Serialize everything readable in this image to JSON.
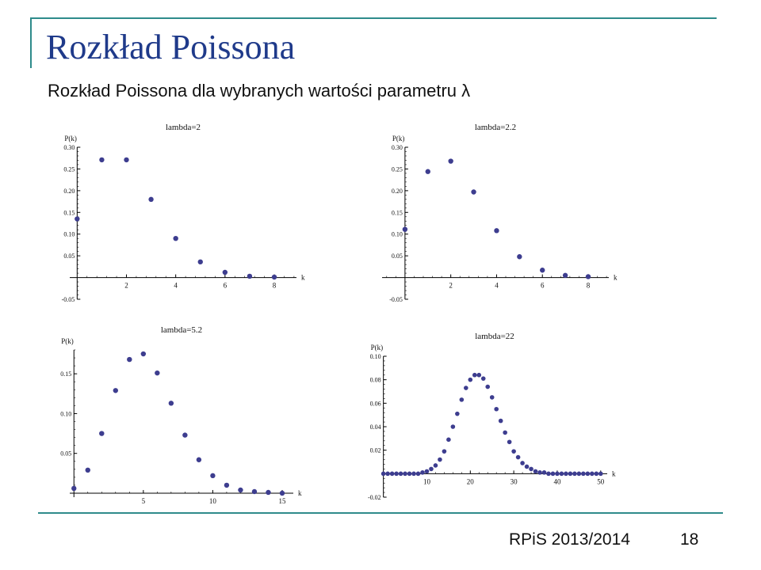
{
  "slide": {
    "title": "Rozkład Poissona",
    "subtitle": "Rozkład Poissona dla wybranych wartości parametru λ",
    "footer_course": "RPiS 2013/2014",
    "footer_page": "18",
    "accent_color": "#2e8b8b",
    "title_color": "#1f3a8a",
    "point_color": "#3d3d8f"
  },
  "chart_data": [
    {
      "type": "scatter",
      "title": "lambda=2",
      "xlabel": "k",
      "ylabel": "P(k)",
      "xlim": [
        -0.3,
        8.9
      ],
      "ylim": [
        -0.05,
        0.3
      ],
      "xticks": [
        2,
        4,
        6,
        8
      ],
      "xtick_labels": [
        "2",
        "4",
        "6",
        "8"
      ],
      "yticks": [
        -0.05,
        0.05,
        0.1,
        0.15,
        0.2,
        0.25,
        0.3
      ],
      "ytick_labels": [
        "-0.05",
        "0.05",
        "0.10",
        "0.15",
        "0.20",
        "0.25",
        "0.30"
      ],
      "x": [
        0,
        1,
        2,
        3,
        4,
        5,
        6,
        7,
        8
      ],
      "y": [
        0.135,
        0.271,
        0.271,
        0.18,
        0.09,
        0.036,
        0.012,
        0.003,
        0.001
      ]
    },
    {
      "type": "scatter",
      "title": "lambda=2.2",
      "xlabel": "k",
      "ylabel": "P(k)",
      "xlim": [
        -1.0,
        8.9
      ],
      "ylim": [
        -0.05,
        0.3
      ],
      "xticks": [
        2,
        4,
        6,
        8
      ],
      "xtick_labels": [
        "2",
        "4",
        "6",
        "8"
      ],
      "yticks": [
        -0.05,
        0.05,
        0.1,
        0.15,
        0.2,
        0.25,
        0.3
      ],
      "ytick_labels": [
        "-0.05",
        "0.05",
        "0.10",
        "0.15",
        "0.20",
        "0.25",
        "0.30"
      ],
      "x": [
        0,
        1,
        2,
        3,
        4,
        5,
        6,
        7,
        8
      ],
      "y": [
        0.111,
        0.244,
        0.268,
        0.197,
        0.108,
        0.048,
        0.017,
        0.005,
        0.002
      ]
    },
    {
      "type": "scatter",
      "title": "lambda=5.2",
      "xlabel": "k",
      "ylabel": "P(k)",
      "xlim": [
        -0.3,
        15.8
      ],
      "ylim": [
        -0.005,
        0.18
      ],
      "xticks": [
        5,
        10,
        15
      ],
      "xtick_labels": [
        "5",
        "10",
        "15"
      ],
      "yticks": [
        0.05,
        0.1,
        0.15
      ],
      "ytick_labels": [
        "0.05",
        "0.10",
        "0.15"
      ],
      "x": [
        0,
        1,
        2,
        3,
        4,
        5,
        6,
        7,
        8,
        9,
        10,
        11,
        12,
        13,
        14,
        15
      ],
      "y": [
        0.006,
        0.029,
        0.075,
        0.129,
        0.168,
        0.175,
        0.151,
        0.113,
        0.073,
        0.042,
        0.022,
        0.01,
        0.004,
        0.002,
        0.001,
        0.0
      ]
    },
    {
      "type": "scatter",
      "title": "lambda=22",
      "xlabel": "k",
      "ylabel": "P(k)",
      "xlim": [
        -0.3,
        51.5
      ],
      "ylim": [
        -0.02,
        0.1
      ],
      "xticks": [
        10,
        20,
        30,
        40,
        50
      ],
      "xtick_labels": [
        "10",
        "20",
        "30",
        "40",
        "50"
      ],
      "yticks": [
        -0.02,
        0.02,
        0.04,
        0.06,
        0.08,
        0.1
      ],
      "ytick_labels": [
        "-0.02",
        "0.02",
        "0.04",
        "0.06",
        "0.08",
        "0.10"
      ],
      "x": [
        0,
        1,
        2,
        3,
        4,
        5,
        6,
        7,
        8,
        9,
        10,
        11,
        12,
        13,
        14,
        15,
        16,
        17,
        18,
        19,
        20,
        21,
        22,
        23,
        24,
        25,
        26,
        27,
        28,
        29,
        30,
        31,
        32,
        33,
        34,
        35,
        36,
        37,
        38,
        39,
        40,
        41,
        42,
        43,
        44,
        45,
        46,
        47,
        48,
        49,
        50
      ],
      "y": [
        0.0,
        0.0,
        0.0,
        0.0,
        0.0,
        0.0,
        0.0,
        0.0,
        0.0,
        0.001,
        0.002,
        0.004,
        0.007,
        0.012,
        0.019,
        0.029,
        0.04,
        0.051,
        0.063,
        0.073,
        0.08,
        0.084,
        0.084,
        0.081,
        0.074,
        0.065,
        0.055,
        0.045,
        0.035,
        0.027,
        0.019,
        0.014,
        0.009,
        0.006,
        0.004,
        0.002,
        0.001,
        0.001,
        0.0,
        0.0,
        0.0,
        0.0,
        0.0,
        0.0,
        0.0,
        0.0,
        0.0,
        0.0,
        0.0,
        0.0,
        0.0
      ]
    }
  ]
}
